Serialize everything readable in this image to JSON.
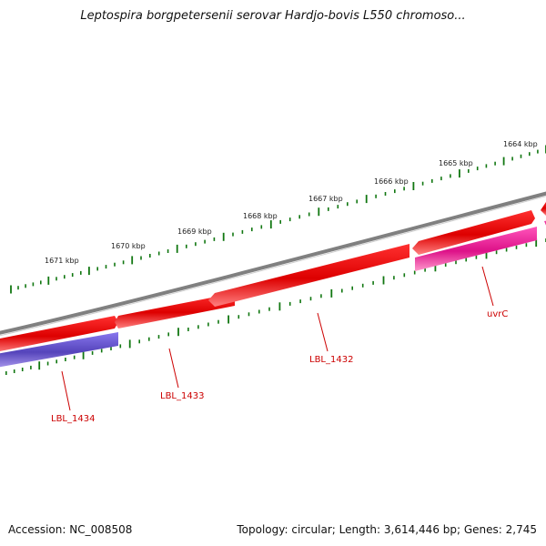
{
  "header": {
    "title": "Leptospira borgpetersenii serovar Hardjo-bovis L550 chromoso..."
  },
  "footer": {
    "accession": "Accession: NC_008508",
    "summary": "Topology: circular; Length: 3,614,446 bp; Genes: 2,745"
  },
  "map": {
    "colors": {
      "backbone": "#808080",
      "forward_gene": "#ee0000",
      "reverse_gene_blue": "#6655cc",
      "reverse_gene_pink": "#ee2299",
      "ticks": "#117711",
      "gene_label": "#cc0000"
    },
    "kbp_labels": [
      "1671 kbp",
      "1670 kbp",
      "1669 kbp",
      "1668 kbp",
      "1667 kbp",
      "1666 kbp",
      "1665 kbp",
      "1664 kbp"
    ],
    "genes": [
      {
        "name": "LBL_1434",
        "strand": "reverse",
        "color": "blue"
      },
      {
        "name": "LBL_1433",
        "strand": "forward",
        "color": "red"
      },
      {
        "name": "LBL_1432",
        "strand": "forward",
        "color": "red"
      },
      {
        "name": "uvrC",
        "strand": "reverse",
        "color": "pink"
      }
    ]
  }
}
